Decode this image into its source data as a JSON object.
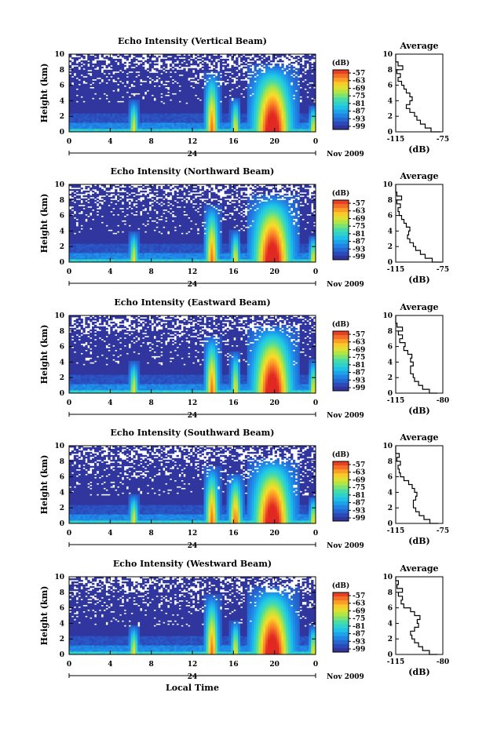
{
  "chart_data": [
    {
      "type": "heatmap",
      "title": "Echo Intensity (Vertical Beam)",
      "ylabel": "Height (km)",
      "ylim": [
        0,
        10
      ],
      "yticks": [
        "0",
        "2",
        "4",
        "6",
        "8",
        "10"
      ],
      "xticks": [
        "0",
        "4",
        "8",
        "12",
        "16",
        "20",
        "0"
      ],
      "day_label": "24",
      "date_label": "Nov 2009",
      "colorbar": {
        "unit": "(dB)",
        "ticks": [
          "-57",
          "-63",
          "-69",
          "-75",
          "-81",
          "-87",
          "-93",
          "-99"
        ]
      },
      "plumes": [
        {
          "t": 6.3,
          "top": 4.2
        },
        {
          "t": 13.9,
          "top": 7.8
        },
        {
          "t": 16.2,
          "top": 4.5
        },
        {
          "t": 19.8,
          "top": 8.8
        },
        {
          "t": 23.8,
          "top": 3.5
        }
      ],
      "profile": {
        "title": "Average",
        "xlabel": "(dB)",
        "xticks": [
          "-115",
          "-75"
        ],
        "xlim": [
          -115,
          -75
        ],
        "ylim": [
          0,
          10
        ],
        "heights": [
          0,
          0.5,
          1,
          1.5,
          2,
          2.5,
          3,
          3.5,
          4,
          4.5,
          5,
          5.5,
          6,
          6.5,
          7,
          7.5,
          8,
          8.5,
          9,
          9.5,
          10
        ],
        "values": [
          -77,
          -85,
          -90,
          -94,
          -97,
          -99,
          -103,
          -106,
          -103,
          -101,
          -103,
          -106,
          -108,
          -110,
          -113,
          -111,
          -114,
          -109,
          -113,
          -115,
          -115
        ]
      }
    },
    {
      "type": "heatmap",
      "title": "Echo Intensity (Northward Beam)",
      "ylabel": "Height (km)",
      "ylim": [
        0,
        10
      ],
      "yticks": [
        "0",
        "2",
        "4",
        "6",
        "8",
        "10"
      ],
      "xticks": [
        "0",
        "4",
        "8",
        "12",
        "16",
        "20",
        "0"
      ],
      "day_label": "24",
      "date_label": "Nov 2009",
      "colorbar": {
        "unit": "(dB)",
        "ticks": [
          "-57",
          "-63",
          "-69",
          "-75",
          "-81",
          "-87",
          "-93",
          "-99"
        ]
      },
      "plumes": [
        {
          "t": 6.3,
          "top": 4.0
        },
        {
          "t": 13.9,
          "top": 7.5
        },
        {
          "t": 16.2,
          "top": 4.2
        },
        {
          "t": 19.8,
          "top": 8.8
        },
        {
          "t": 23.8,
          "top": 3.5
        }
      ],
      "profile": {
        "title": "Average",
        "xlabel": "(dB)",
        "xticks": [
          "-115",
          "-75"
        ],
        "xlim": [
          -115,
          -75
        ],
        "ylim": [
          0,
          10
        ],
        "heights": [
          0,
          0.5,
          1,
          1.5,
          2,
          2.5,
          3,
          3.5,
          4,
          4.5,
          5,
          5.5,
          6,
          6.5,
          7,
          7.5,
          8,
          8.5,
          9,
          9.5,
          10
        ],
        "values": [
          -76,
          -84,
          -90,
          -94,
          -98,
          -100,
          -103,
          -105,
          -104,
          -103,
          -106,
          -108,
          -110,
          -112,
          -113,
          -111,
          -114,
          -110,
          -114,
          -115,
          -115
        ]
      }
    },
    {
      "type": "heatmap",
      "title": "Echo Intensity (Eastward Beam)",
      "ylabel": "Height (km)",
      "ylim": [
        0,
        10
      ],
      "yticks": [
        "0",
        "2",
        "4",
        "6",
        "8",
        "10"
      ],
      "xticks": [
        "0",
        "4",
        "8",
        "12",
        "16",
        "20",
        "0"
      ],
      "day_label": "24",
      "date_label": "Nov 2009",
      "colorbar": {
        "unit": "(dB)",
        "ticks": [
          "-57",
          "-63",
          "-69",
          "-75",
          "-81",
          "-87",
          "-93",
          "-99"
        ]
      },
      "plumes": [
        {
          "t": 6.3,
          "top": 4.2
        },
        {
          "t": 13.9,
          "top": 7.5
        },
        {
          "t": 16.2,
          "top": 5.5
        },
        {
          "t": 19.8,
          "top": 8.8
        },
        {
          "t": 23.8,
          "top": 4.5
        }
      ],
      "profile": {
        "title": "Average",
        "xlabel": "(dB)",
        "xticks": [
          "-115",
          "-80"
        ],
        "xlim": [
          -115,
          -80
        ],
        "ylim": [
          0,
          10
        ],
        "heights": [
          0,
          0.5,
          1,
          1.5,
          2,
          2.5,
          3,
          3.5,
          4,
          4.5,
          5,
          5.5,
          6,
          6.5,
          7,
          7.5,
          8,
          8.5,
          9,
          9.5,
          10
        ],
        "values": [
          -84,
          -90,
          -95,
          -98,
          -101,
          -102,
          -104,
          -104,
          -102,
          -104,
          -103,
          -106,
          -109,
          -108,
          -112,
          -110,
          -113,
          -110,
          -114,
          -115,
          -115
        ]
      }
    },
    {
      "type": "heatmap",
      "title": "Echo Intensity (Southward Beam)",
      "ylabel": "Height (km)",
      "ylim": [
        0,
        10
      ],
      "yticks": [
        "0",
        "2",
        "4",
        "6",
        "8",
        "10"
      ],
      "xticks": [
        "0",
        "4",
        "8",
        "12",
        "16",
        "20",
        "0"
      ],
      "day_label": "24",
      "date_label": "Nov 2009",
      "colorbar": {
        "unit": "(dB)",
        "ticks": [
          "-57",
          "-63",
          "-69",
          "-75",
          "-81",
          "-87",
          "-93",
          "-99"
        ]
      },
      "plumes": [
        {
          "t": 6.3,
          "top": 3.8
        },
        {
          "t": 13.9,
          "top": 7.5
        },
        {
          "t": 16.2,
          "top": 6.5
        },
        {
          "t": 19.8,
          "top": 8.5
        },
        {
          "t": 23.8,
          "top": 3.5
        }
      ],
      "profile": {
        "title": "Average",
        "xlabel": "(dB)",
        "xticks": [
          "-115",
          "-75"
        ],
        "xlim": [
          -115,
          -75
        ],
        "ylim": [
          0,
          10
        ],
        "heights": [
          0,
          0.5,
          1,
          1.5,
          2,
          2.5,
          3,
          3.5,
          4,
          4.5,
          5,
          5.5,
          6,
          6.5,
          7,
          7.5,
          8,
          8.5,
          9,
          9.5,
          10
        ],
        "values": [
          -79,
          -86,
          -91,
          -95,
          -98,
          -100,
          -100,
          -98,
          -97,
          -99,
          -101,
          -104,
          -108,
          -111,
          -112,
          -113,
          -111,
          -114,
          -112,
          -115,
          -115
        ]
      }
    },
    {
      "type": "heatmap",
      "title": "Echo Intensity (Westward Beam)",
      "ylabel": "Height (km)",
      "ylim": [
        0,
        10
      ],
      "yticks": [
        "0",
        "2",
        "4",
        "6",
        "8",
        "10"
      ],
      "xticks": [
        "0",
        "4",
        "8",
        "12",
        "16",
        "20",
        "0"
      ],
      "day_label": "24",
      "date_label": "Nov 2009",
      "xlabel": "Local Time",
      "colorbar": {
        "unit": "(dB)",
        "ticks": [
          "-57",
          "-63",
          "-69",
          "-75",
          "-81",
          "-87",
          "-93",
          "-99"
        ]
      },
      "plumes": [
        {
          "t": 6.3,
          "top": 3.8
        },
        {
          "t": 13.9,
          "top": 7.8
        },
        {
          "t": 16.2,
          "top": 4.5
        },
        {
          "t": 19.8,
          "top": 8.8
        },
        {
          "t": 23.8,
          "top": 3.8
        }
      ],
      "profile": {
        "title": "Average",
        "xlabel": "(dB)",
        "xticks": [
          "-115",
          "-80"
        ],
        "xlim": [
          -115,
          -80
        ],
        "ylim": [
          0,
          10
        ],
        "heights": [
          0,
          0.5,
          1,
          1.5,
          2,
          2.5,
          3,
          3.5,
          4,
          4.5,
          5,
          5.5,
          6,
          6.5,
          7,
          7.5,
          8,
          8.5,
          9,
          9.5,
          10
        ],
        "values": [
          -84,
          -90,
          -95,
          -98,
          -101,
          -103,
          -104,
          -101,
          -98,
          -99,
          -97,
          -101,
          -104,
          -109,
          -111,
          -110,
          -113,
          -110,
          -114,
          -113,
          -115
        ]
      }
    }
  ]
}
